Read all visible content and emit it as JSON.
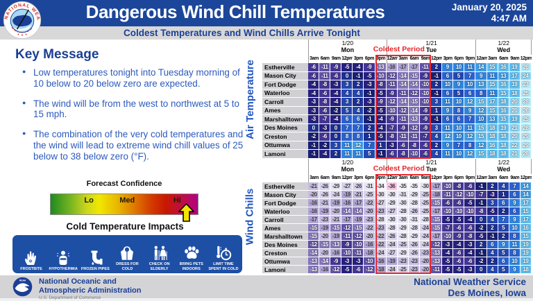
{
  "header": {
    "title": "Dangerous Wind Chill Temperatures",
    "date_line1": "January 20, 2025",
    "date_line2": "4:47 AM",
    "subtitle": "Coldest Temperatures and Wind Chills Arrive Tonight",
    "logo": "nws-seal-icon"
  },
  "key_message": {
    "heading": "Key Message",
    "bullets": [
      "Low temperatures tonight into Tuesday morning of 10 below to 20 below zero are expected.",
      "The wind will be from the west to northwest at 5 to 15 mph.",
      "The combination of the very cold temperatures and the wind will lead to extreme wind chill values of 25 below to 38 below zero (°F)."
    ]
  },
  "forecast_confidence": {
    "title": "Forecast Confidence",
    "labels": [
      "Lo",
      "Med",
      "Hi"
    ],
    "label_positions_pct": [
      26,
      52,
      86
    ],
    "arrow_points_to": "Hi"
  },
  "impacts": {
    "title": "Cold Temperature Impacts",
    "items": [
      {
        "icon": "frostbite-icon",
        "label": "FROSTBITE"
      },
      {
        "icon": "hypothermia-icon",
        "label": "HYPOTHERMIA"
      },
      {
        "icon": "frozen-pipes-icon",
        "label": "FROZEN PIPES"
      },
      {
        "icon": "dress-for-cold-icon",
        "label": "DRESS FOR COLD"
      },
      {
        "icon": "check-on-elderly-icon",
        "label": "CHECK ON ELDERLY"
      },
      {
        "icon": "bring-pets-indoors-icon",
        "label": "BRING PETS INDOORS"
      },
      {
        "icon": "limit-time-icon",
        "label": "LIMIT TIME SPENT IN COLD"
      }
    ]
  },
  "chart_data": [
    {
      "type": "heatmap",
      "title": "Air Temperature",
      "day_groups": [
        {
          "date": "1/20",
          "day": "Mon",
          "span": 7
        },
        {
          "date": "1/21",
          "day": "Tue",
          "span": 8
        },
        {
          "date": "1/22",
          "day": "Wed",
          "span": 5
        }
      ],
      "x_labels": [
        "3am",
        "6am",
        "9am",
        "12pm",
        "3pm",
        "6pm",
        "9pm",
        "12am",
        "3am",
        "6am",
        "9am",
        "12pm",
        "3pm",
        "6pm",
        "9pm",
        "12am",
        "3am",
        "6am",
        "9am",
        "12pm"
      ],
      "y_labels": [
        "Estherville",
        "Mason City",
        "Fort Dodge",
        "Waterloo",
        "Carroll",
        "Ames",
        "Marshalltown",
        "Des Moines",
        "Creston",
        "Ottumwa",
        "Lamoni"
      ],
      "values": [
        [
          -6,
          -11,
          -9,
          -5,
          -4,
          -9,
          -13,
          -16,
          -17,
          -17,
          -11,
          2,
          9,
          10,
          11,
          14,
          15,
          16,
          19,
          26
        ],
        [
          -6,
          -11,
          -6,
          0,
          -1,
          -5,
          -10,
          -12,
          -14,
          -15,
          -9,
          -1,
          6,
          5,
          7,
          9,
          11,
          13,
          17,
          24
        ],
        [
          -4,
          -8,
          -3,
          3,
          2,
          -3,
          -8,
          -11,
          -14,
          -14,
          -10,
          2,
          10,
          9,
          10,
          13,
          15,
          16,
          19,
          27
        ],
        [
          -4,
          -6,
          -4,
          4,
          4,
          -1,
          -5,
          -9,
          -11,
          -12,
          -10,
          -1,
          6,
          5,
          6,
          8,
          11,
          15,
          18,
          25
        ],
        [
          -3,
          -8,
          -4,
          3,
          2,
          -3,
          -9,
          -12,
          -14,
          -15,
          -10,
          3,
          11,
          10,
          12,
          15,
          17,
          18,
          20,
          28
        ],
        [
          -3,
          -6,
          -2,
          5,
          4,
          -2,
          -5,
          -10,
          -12,
          -14,
          -9,
          1,
          9,
          8,
          9,
          12,
          15,
          16,
          20,
          26
        ],
        [
          -3,
          -7,
          -4,
          6,
          6,
          -1,
          -4,
          -9,
          -11,
          -13,
          -9,
          -1,
          6,
          6,
          7,
          10,
          13,
          15,
          19,
          25
        ],
        [
          0,
          -3,
          0,
          7,
          7,
          2,
          -4,
          -7,
          -9,
          -12,
          -9,
          3,
          11,
          10,
          11,
          15,
          18,
          19,
          21,
          28
        ],
        [
          -2,
          -6,
          0,
          8,
          8,
          1,
          -5,
          -8,
          -11,
          -11,
          -7,
          4,
          12,
          10,
          12,
          15,
          18,
          18,
          20,
          29
        ],
        [
          -1,
          -2,
          3,
          11,
          12,
          7,
          1,
          -3,
          -6,
          -8,
          -6,
          2,
          9,
          7,
          8,
          12,
          16,
          18,
          22,
          29
        ],
        [
          -1,
          -4,
          2,
          11,
          11,
          5,
          -1,
          -6,
          -8,
          -10,
          -6,
          4,
          11,
          10,
          12,
          15,
          18,
          18,
          21,
          28
        ]
      ],
      "coldest_period": {
        "label": "Coldest Period",
        "start_index": 6,
        "end_index": 10
      }
    },
    {
      "type": "heatmap",
      "title": "Wind Chills",
      "day_groups": [
        {
          "date": "1/20",
          "day": "Mon",
          "span": 7
        },
        {
          "date": "1/21",
          "day": "Tue",
          "span": 8
        },
        {
          "date": "1/22",
          "day": "Wed",
          "span": 5
        }
      ],
      "x_labels": [
        "3am",
        "6am",
        "9am",
        "12pm",
        "3pm",
        "6pm",
        "9pm",
        "12am",
        "3am",
        "6am",
        "9am",
        "12pm",
        "3pm",
        "6pm",
        "9pm",
        "12am",
        "3am",
        "6am",
        "9am",
        "12pm"
      ],
      "y_labels": [
        "Estherville",
        "Mason City",
        "Fort Dodge",
        "Waterloo",
        "Carroll",
        "Ames",
        "Marshalltown",
        "Des Moines",
        "Creston",
        "Ottumwa",
        "Lamoni"
      ],
      "values": [
        [
          -21,
          -26,
          -29,
          -27,
          -26,
          -31,
          -34,
          -36,
          -35,
          -35,
          -30,
          -17,
          -10,
          -8,
          -6,
          -1,
          2,
          4,
          7,
          14
        ],
        [
          -20,
          -26,
          -24,
          -19,
          -21,
          -25,
          -30,
          -30,
          -31,
          -29,
          -25,
          -18,
          -11,
          -12,
          -10,
          -7,
          -3,
          1,
          6,
          14
        ],
        [
          -16,
          -21,
          -19,
          -16,
          -17,
          -22,
          -27,
          -29,
          -30,
          -28,
          -25,
          -15,
          -6,
          -6,
          -5,
          -1,
          3,
          6,
          9,
          17
        ],
        [
          -16,
          -19,
          -20,
          -14,
          -14,
          -20,
          -23,
          -27,
          -28,
          -26,
          -25,
          -17,
          -10,
          -10,
          -10,
          -8,
          -5,
          2,
          6,
          15
        ],
        [
          -17,
          -23,
          -21,
          -17,
          -19,
          -23,
          -28,
          -30,
          -30,
          -31,
          -28,
          -15,
          -5,
          -5,
          -4,
          0,
          4,
          7,
          9,
          17
        ],
        [
          -15,
          -19,
          -15,
          -12,
          -15,
          -22,
          -23,
          -28,
          -29,
          -28,
          -24,
          -15,
          -7,
          -6,
          -6,
          -2,
          2,
          5,
          10,
          16
        ],
        [
          -15,
          -20,
          -19,
          -11,
          -12,
          -20,
          -22,
          -26,
          -28,
          -29,
          -24,
          -17,
          -10,
          -9,
          -8,
          -5,
          -1,
          2,
          8,
          15
        ],
        [
          -12,
          -15,
          -13,
          -9,
          -10,
          -16,
          -22,
          -24,
          -25,
          -26,
          -24,
          -12,
          -3,
          -4,
          -3,
          2,
          6,
          9,
          11,
          19
        ],
        [
          -14,
          -20,
          -16,
          -10,
          -11,
          -18,
          -24,
          -27,
          -29,
          -26,
          -23,
          -13,
          -4,
          -6,
          -4,
          -1,
          4,
          5,
          8,
          19
        ],
        [
          -13,
          -14,
          -9,
          -3,
          -3,
          -10,
          -16,
          -19,
          -23,
          -23,
          -20,
          -13,
          -5,
          -6,
          -6,
          -2,
          2,
          6,
          10,
          19
        ],
        [
          -13,
          -16,
          -12,
          -5,
          -6,
          -12,
          -18,
          -24,
          -25,
          -23,
          -20,
          -11,
          -5,
          -5,
          -3,
          0,
          4,
          5,
          9,
          18
        ]
      ],
      "coldest_period": {
        "label": "Coldest Period",
        "start_index": 6,
        "end_index": 10
      }
    }
  ],
  "footer": {
    "noaa_line1": "National Oceanic and",
    "noaa_line2": "Atmospheric Administration",
    "noaa_sub": "U.S. Department of Commerce",
    "nws_line1": "National Weather Service",
    "nws_line2": "Des Moines, Iowa"
  },
  "colors": {
    "header_blue": "#1c4699",
    "panel_blue": "#1d4fa5",
    "text_blue": "#1b3f94",
    "bullet_blue": "#2b5abe",
    "accent_red": "#e8262a",
    "city_gray": "#d0d0d4",
    "footer_gray": "#d4d4d6",
    "white_text_min": -15,
    "value_scale": [
      {
        "min": 25,
        "bg": "#b7edfb"
      },
      {
        "min": 20,
        "bg": "#8fd9f7"
      },
      {
        "min": 15,
        "bg": "#5fc0f2"
      },
      {
        "min": 12,
        "bg": "#3fa0ea"
      },
      {
        "min": 9,
        "bg": "#2f86e0"
      },
      {
        "min": 6,
        "bg": "#2a62d0"
      },
      {
        "min": 3,
        "bg": "#2447b0"
      },
      {
        "min": 0,
        "bg": "#1d2f92"
      },
      {
        "min": -2,
        "bg": "#191f72"
      },
      {
        "min": -5,
        "bg": "#272080"
      },
      {
        "min": -9,
        "bg": "#453695"
      },
      {
        "min": -12,
        "bg": "#6353a8"
      },
      {
        "min": -15,
        "bg": "#8677bd"
      },
      {
        "min": -19,
        "bg": "#b1a5d4"
      },
      {
        "min": -23,
        "bg": "#c6bde0"
      },
      {
        "min": -27,
        "bg": "#d9d3ec"
      },
      {
        "min": -31,
        "bg": "#e9e6f4"
      },
      {
        "min": -35,
        "bg": "#f4f2fa"
      },
      {
        "min": -999,
        "bg": "#f9c4e5"
      }
    ]
  }
}
